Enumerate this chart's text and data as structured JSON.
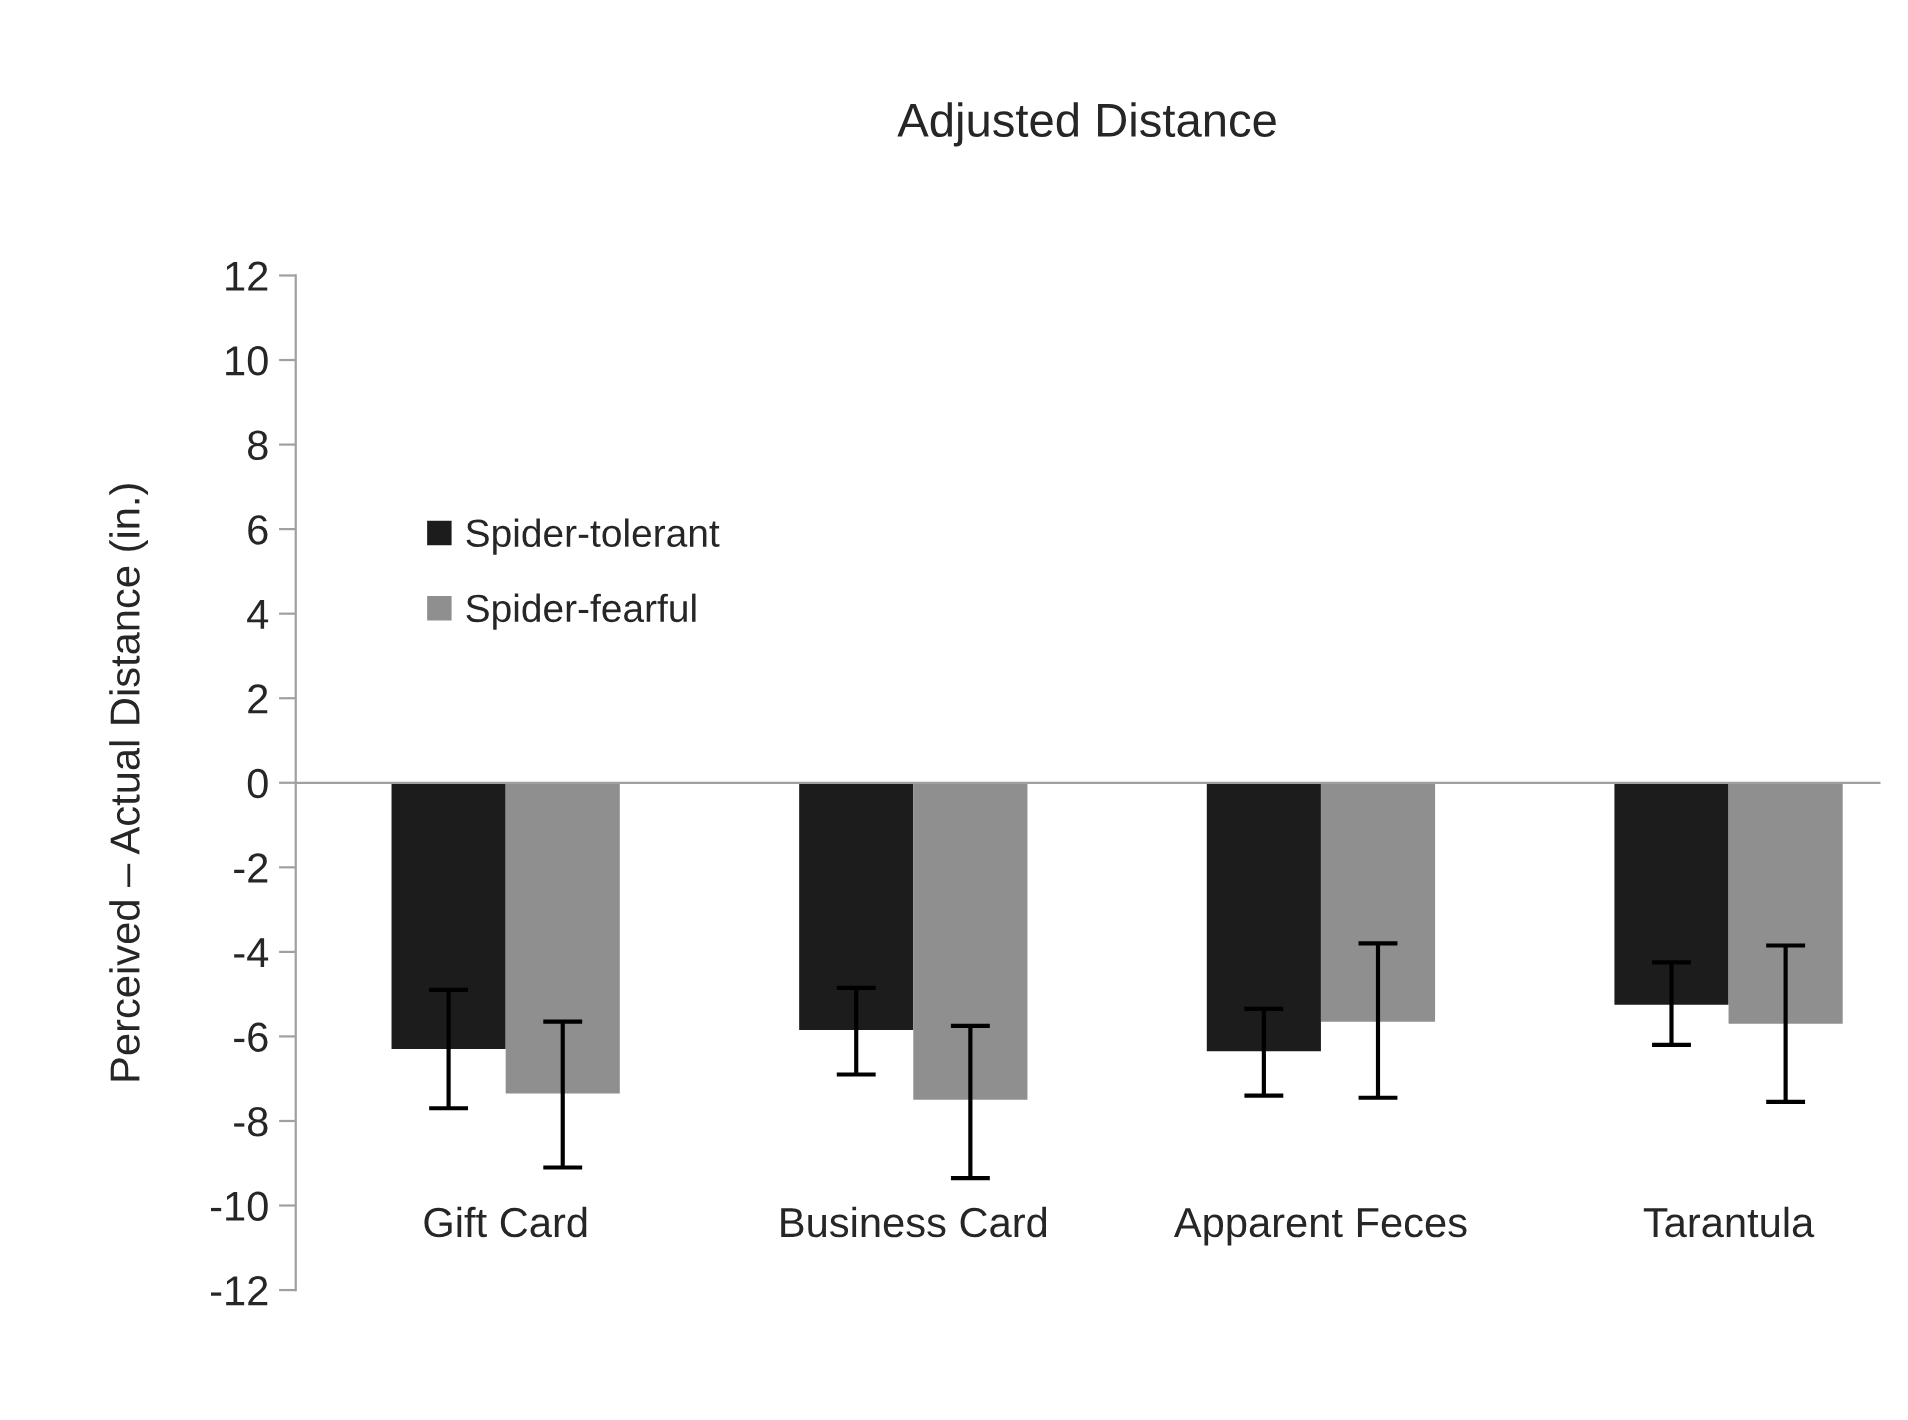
{
  "chart_data": {
    "type": "bar",
    "title": "Adjusted Distance",
    "ylabel": "Perceived – Actual Distance (in.)",
    "categories": [
      "Gift Card",
      "Business Card",
      "Apparent Feces",
      "Tarantula"
    ],
    "series": [
      {
        "name": "Spider-tolerant",
        "color": "#1c1c1c",
        "values": [
          -6.3,
          -5.85,
          -6.35,
          -5.25
        ],
        "errors": [
          [
            -7.7,
            -4.9
          ],
          [
            -6.9,
            -4.85
          ],
          [
            -7.4,
            -5.35
          ],
          [
            -6.2,
            -4.25
          ]
        ]
      },
      {
        "name": "Spider-fearful",
        "color": "#8f8f8f",
        "values": [
          -7.35,
          -7.5,
          -5.65,
          -5.7
        ],
        "errors": [
          [
            -9.1,
            -5.65
          ],
          [
            -9.35,
            -5.75
          ],
          [
            -7.45,
            -3.8
          ],
          [
            -7.55,
            -3.85
          ]
        ]
      }
    ],
    "ylim": [
      -12,
      12
    ],
    "yticks": [
      -12,
      -10,
      -8,
      -6,
      -4,
      -2,
      0,
      2,
      4,
      6,
      8,
      10,
      12
    ],
    "legend": "top left"
  }
}
